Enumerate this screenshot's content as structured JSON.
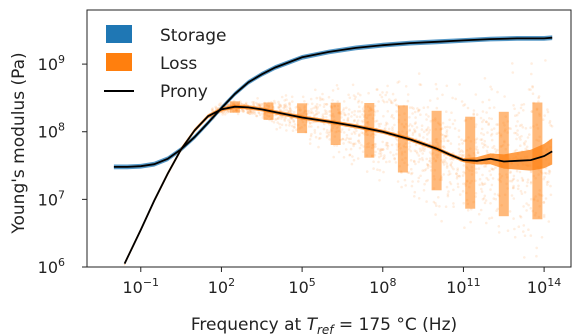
{
  "chart_data": {
    "type": "scatter",
    "title": "",
    "xlabel_prefix": "Frequency at ",
    "xlabel_var": "T",
    "xlabel_sub": "ref",
    "xlabel_suffix": " = 175 °C (Hz)",
    "ylabel": "Young's modulus (Pa)",
    "x_scale": "log",
    "y_scale": "log",
    "xlim_log10": [
      -3.0,
      15.0
    ],
    "ylim_log10": [
      6.0,
      9.8
    ],
    "x_ticks": [
      {
        "exp": -1,
        "base": "10",
        "sup": "−1"
      },
      {
        "exp": 2,
        "base": "10",
        "sup": "2"
      },
      {
        "exp": 5,
        "base": "10",
        "sup": "5"
      },
      {
        "exp": 8,
        "base": "10",
        "sup": "8"
      },
      {
        "exp": 11,
        "base": "10",
        "sup": "11"
      },
      {
        "exp": 14,
        "base": "10",
        "sup": "14"
      }
    ],
    "y_ticks": [
      {
        "exp": 6,
        "base": "10",
        "sup": "6"
      },
      {
        "exp": 7,
        "base": "10",
        "sup": "7"
      },
      {
        "exp": 8,
        "base": "10",
        "sup": "8"
      },
      {
        "exp": 9,
        "base": "10",
        "sup": "9"
      }
    ],
    "legend": {
      "position": "upper-left",
      "items": [
        {
          "name": "Storage",
          "kind": "patch",
          "color": "#1f77b4"
        },
        {
          "name": "Loss",
          "kind": "patch",
          "color": "#ff7f0e"
        },
        {
          "name": "Prony",
          "kind": "line",
          "color": "#000000"
        }
      ]
    },
    "series": [
      {
        "name": "Storage",
        "color": "#1f77b4",
        "x_log10": [
          -2.0,
          -1.5,
          -1.0,
          -0.5,
          0.0,
          0.5,
          1.0,
          1.5,
          2.0,
          2.5,
          3.0,
          3.5,
          4.0,
          5.0,
          6.0,
          7.0,
          8.0,
          9.0,
          10.0,
          11.0,
          12.0,
          13.0,
          14.0,
          14.3
        ],
        "y_log10": [
          7.48,
          7.48,
          7.49,
          7.52,
          7.6,
          7.74,
          7.92,
          8.13,
          8.35,
          8.56,
          8.73,
          8.85,
          8.95,
          9.1,
          9.18,
          9.24,
          9.28,
          9.31,
          9.33,
          9.35,
          9.37,
          9.38,
          9.38,
          9.39
        ]
      },
      {
        "name": "Loss",
        "color": "#ff7f0e",
        "x_log10": [
          -1.6,
          -1.0,
          -0.5,
          0.0,
          0.5,
          1.0,
          1.5,
          2.0,
          2.5,
          3.0,
          3.5,
          4.0,
          5.0,
          6.0,
          7.0,
          8.0,
          9.0,
          10.0,
          10.5,
          11.0,
          11.5,
          12.0,
          12.5,
          13.0,
          13.5,
          14.0,
          14.3
        ],
        "y_log10": [
          6.05,
          6.55,
          6.98,
          7.38,
          7.74,
          8.02,
          8.23,
          8.33,
          8.37,
          8.36,
          8.33,
          8.29,
          8.21,
          8.15,
          8.08,
          8.0,
          7.89,
          7.75,
          7.66,
          7.58,
          7.57,
          7.6,
          7.56,
          7.57,
          7.58,
          7.64,
          7.71
        ]
      },
      {
        "name": "Prony",
        "color": "#000000",
        "fits": [
          "Storage",
          "Loss"
        ]
      }
    ],
    "grid": false
  }
}
